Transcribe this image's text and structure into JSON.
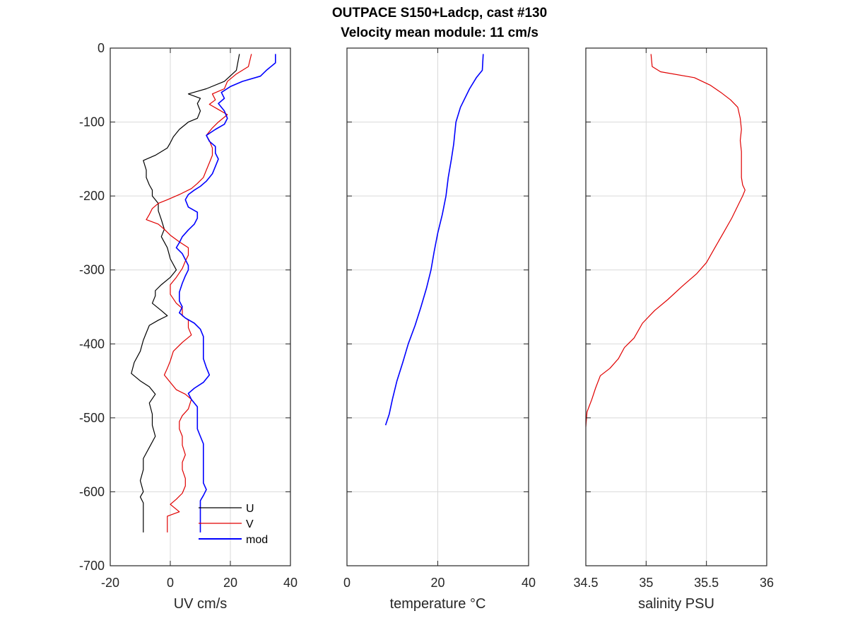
{
  "title": {
    "line1": "OUTPACE S150+Ladcp, cast #130",
    "line2": "Velocity mean module:  11 cm/s"
  },
  "colors": {
    "u": "#000000",
    "v": "#e00000",
    "mod": "#0000ff",
    "temperature": "#0000ff",
    "salinity": "#e00000",
    "grid": "#d9d9d9",
    "axis": "#262626"
  },
  "chart_data": [
    {
      "type": "line",
      "xlabel": "UV cm/s",
      "ylabel": "",
      "xlim": [
        -20,
        40
      ],
      "ylim": [
        -700,
        0
      ],
      "xticks": [
        -20,
        0,
        20,
        40
      ],
      "yticks": [
        0,
        -100,
        -200,
        -300,
        -400,
        -500,
        -600,
        -700
      ],
      "grid": true,
      "legend_position": "bottom-right",
      "series": [
        {
          "name": "U",
          "color": "#000000",
          "points": [
            [
              23,
              -8
            ],
            [
              22,
              -30
            ],
            [
              18,
              -45
            ],
            [
              12,
              -55
            ],
            [
              6,
              -62
            ],
            [
              10,
              -68
            ],
            [
              9,
              -75
            ],
            [
              10,
              -85
            ],
            [
              9,
              -95
            ],
            [
              6,
              -100
            ],
            [
              3,
              -110
            ],
            [
              1,
              -120
            ],
            [
              0,
              -128
            ],
            [
              -1,
              -135
            ],
            [
              -5,
              -145
            ],
            [
              -9,
              -152
            ],
            [
              -8,
              -165
            ],
            [
              -8,
              -175
            ],
            [
              -7,
              -185
            ],
            [
              -6,
              -192
            ],
            [
              -6,
              -200
            ],
            [
              -4,
              -210
            ],
            [
              -4,
              -220
            ],
            [
              -3,
              -232
            ],
            [
              -2,
              -245
            ],
            [
              -3,
              -255
            ],
            [
              -1,
              -270
            ],
            [
              0,
              -285
            ],
            [
              2,
              -300
            ],
            [
              0,
              -310
            ],
            [
              -3,
              -320
            ],
            [
              -5,
              -328
            ],
            [
              -5,
              -335
            ],
            [
              -6,
              -345
            ],
            [
              -3,
              -355
            ],
            [
              -1,
              -362
            ],
            [
              -4,
              -368
            ],
            [
              -7,
              -375
            ],
            [
              -8,
              -385
            ],
            [
              -9,
              -395
            ],
            [
              -10,
              -410
            ],
            [
              -12,
              -425
            ],
            [
              -13,
              -440
            ],
            [
              -10,
              -450
            ],
            [
              -7,
              -458
            ],
            [
              -5,
              -468
            ],
            [
              -7,
              -480
            ],
            [
              -6,
              -495
            ],
            [
              -6,
              -510
            ],
            [
              -5,
              -525
            ],
            [
              -7,
              -540
            ],
            [
              -9,
              -555
            ],
            [
              -9,
              -570
            ],
            [
              -10,
              -585
            ],
            [
              -9,
              -600
            ],
            [
              -10,
              -607
            ],
            [
              -9,
              -615
            ],
            [
              -9,
              -625
            ],
            [
              -9,
              -655
            ]
          ]
        },
        {
          "name": "V",
          "color": "#e00000",
          "points": [
            [
              27,
              -8
            ],
            [
              26,
              -25
            ],
            [
              22,
              -35
            ],
            [
              19,
              -45
            ],
            [
              18,
              -55
            ],
            [
              14,
              -62
            ],
            [
              15,
              -70
            ],
            [
              13,
              -76
            ],
            [
              16,
              -83
            ],
            [
              19,
              -90
            ],
            [
              16,
              -100
            ],
            [
              14,
              -108
            ],
            [
              12,
              -118
            ],
            [
              13,
              -125
            ],
            [
              14,
              -135
            ],
            [
              14,
              -145
            ],
            [
              13,
              -155
            ],
            [
              12,
              -165
            ],
            [
              11,
              -175
            ],
            [
              9,
              -183
            ],
            [
              7,
              -190
            ],
            [
              3,
              -198
            ],
            [
              -1,
              -205
            ],
            [
              -4,
              -210
            ],
            [
              -6,
              -217
            ],
            [
              -7,
              -225
            ],
            [
              -8,
              -232
            ],
            [
              -4,
              -238
            ],
            [
              -2,
              -245
            ],
            [
              0,
              -253
            ],
            [
              3,
              -262
            ],
            [
              6,
              -270
            ],
            [
              6,
              -280
            ],
            [
              5,
              -288
            ],
            [
              4,
              -298
            ],
            [
              2,
              -310
            ],
            [
              0,
              -320
            ],
            [
              0,
              -333
            ],
            [
              2,
              -345
            ],
            [
              4,
              -352
            ],
            [
              4,
              -362
            ],
            [
              6,
              -368
            ],
            [
              6,
              -378
            ],
            [
              7,
              -388
            ],
            [
              4,
              -398
            ],
            [
              1,
              -410
            ],
            [
              0,
              -423
            ],
            [
              -1,
              -433
            ],
            [
              -2,
              -442
            ],
            [
              0,
              -452
            ],
            [
              2,
              -462
            ],
            [
              5,
              -468
            ],
            [
              7,
              -475
            ],
            [
              6,
              -488
            ],
            [
              4,
              -497
            ],
            [
              3,
              -505
            ],
            [
              3,
              -515
            ],
            [
              4,
              -525
            ],
            [
              4,
              -537
            ],
            [
              5,
              -550
            ],
            [
              4,
              -560
            ],
            [
              4,
              -570
            ],
            [
              5,
              -582
            ],
            [
              5,
              -592
            ],
            [
              4,
              -602
            ],
            [
              2,
              -610
            ],
            [
              0,
              -617
            ],
            [
              3,
              -627
            ],
            [
              -1,
              -633
            ],
            [
              -1,
              -655
            ]
          ]
        },
        {
          "name": "mod",
          "color": "#0000ff",
          "points": [
            [
              35,
              -8
            ],
            [
              35,
              -20
            ],
            [
              32,
              -30
            ],
            [
              30,
              -38
            ],
            [
              24,
              -45
            ],
            [
              20,
              -52
            ],
            [
              17,
              -60
            ],
            [
              18,
              -68
            ],
            [
              16,
              -75
            ],
            [
              18,
              -85
            ],
            [
              19,
              -95
            ],
            [
              18,
              -103
            ],
            [
              15,
              -110
            ],
            [
              12,
              -118
            ],
            [
              13,
              -126
            ],
            [
              15,
              -133
            ],
            [
              15,
              -142
            ],
            [
              16,
              -150
            ],
            [
              15,
              -160
            ],
            [
              14,
              -170
            ],
            [
              12,
              -180
            ],
            [
              10,
              -187
            ],
            [
              8,
              -192
            ],
            [
              6,
              -198
            ],
            [
              5,
              -205
            ],
            [
              6,
              -215
            ],
            [
              9,
              -222
            ],
            [
              9,
              -230
            ],
            [
              8,
              -238
            ],
            [
              6,
              -246
            ],
            [
              4,
              -255
            ],
            [
              3,
              -263
            ],
            [
              2,
              -270
            ],
            [
              4,
              -278
            ],
            [
              5,
              -286
            ],
            [
              6,
              -294
            ],
            [
              6,
              -300
            ],
            [
              5,
              -308
            ],
            [
              4,
              -318
            ],
            [
              3,
              -330
            ],
            [
              3,
              -342
            ],
            [
              4,
              -350
            ],
            [
              3,
              -358
            ],
            [
              5,
              -365
            ],
            [
              8,
              -372
            ],
            [
              10,
              -380
            ],
            [
              11,
              -390
            ],
            [
              11,
              -400
            ],
            [
              11,
              -410
            ],
            [
              11,
              -420
            ],
            [
              12,
              -432
            ],
            [
              13,
              -442
            ],
            [
              11,
              -452
            ],
            [
              8,
              -460
            ],
            [
              6,
              -467
            ],
            [
              7,
              -475
            ],
            [
              9,
              -485
            ],
            [
              9,
              -495
            ],
            [
              9,
              -505
            ],
            [
              9,
              -515
            ],
            [
              10,
              -525
            ],
            [
              11,
              -535
            ],
            [
              11,
              -548
            ],
            [
              11,
              -560
            ],
            [
              11,
              -575
            ],
            [
              11,
              -588
            ],
            [
              12,
              -597
            ],
            [
              11,
              -605
            ],
            [
              10,
              -612
            ],
            [
              10,
              -620
            ],
            [
              10,
              -630
            ],
            [
              10,
              -655
            ]
          ]
        }
      ]
    },
    {
      "type": "line",
      "xlabel": "temperature °C",
      "ylabel": "",
      "xlim": [
        0,
        40
      ],
      "ylim": [
        -700,
        0
      ],
      "xticks": [
        0,
        20,
        40
      ],
      "yticks": [
        0,
        -100,
        -200,
        -300,
        -400,
        -500,
        -600,
        -700
      ],
      "grid": true,
      "series": [
        {
          "name": "",
          "color": "#0000ff",
          "points": [
            [
              30,
              -8
            ],
            [
              29.8,
              -30
            ],
            [
              28.5,
              -40
            ],
            [
              27,
              -55
            ],
            [
              25,
              -80
            ],
            [
              24,
              -100
            ],
            [
              23.5,
              -130
            ],
            [
              23,
              -150
            ],
            [
              22.3,
              -175
            ],
            [
              21.8,
              -200
            ],
            [
              21,
              -225
            ],
            [
              20,
              -250
            ],
            [
              19.2,
              -275
            ],
            [
              18.5,
              -300
            ],
            [
              17.5,
              -325
            ],
            [
              16.3,
              -350
            ],
            [
              15,
              -375
            ],
            [
              13.5,
              -400
            ],
            [
              12.3,
              -425
            ],
            [
              11,
              -450
            ],
            [
              10,
              -475
            ],
            [
              9.3,
              -495
            ],
            [
              8.5,
              -510
            ]
          ]
        }
      ]
    },
    {
      "type": "line",
      "xlabel": "salinity PSU",
      "ylabel": "",
      "xlim": [
        34.5,
        36
      ],
      "xtick_labels": [
        "34.5",
        "35",
        "35.5",
        "36"
      ],
      "ylim": [
        -700,
        0
      ],
      "xticks": [
        34.5,
        35,
        35.5,
        36
      ],
      "yticks": [
        0,
        -100,
        -200,
        -300,
        -400,
        -500,
        -600,
        -700
      ],
      "grid": true,
      "series": [
        {
          "name": "",
          "color": "#e00000",
          "points": [
            [
              35.04,
              -8
            ],
            [
              35.05,
              -25
            ],
            [
              35.12,
              -32
            ],
            [
              35.4,
              -40
            ],
            [
              35.53,
              -50
            ],
            [
              35.62,
              -60
            ],
            [
              35.7,
              -70
            ],
            [
              35.76,
              -80
            ],
            [
              35.78,
              -95
            ],
            [
              35.79,
              -110
            ],
            [
              35.78,
              -125
            ],
            [
              35.79,
              -140
            ],
            [
              35.79,
              -160
            ],
            [
              35.79,
              -175
            ],
            [
              35.8,
              -185
            ],
            [
              35.82,
              -192
            ],
            [
              35.8,
              -200
            ],
            [
              35.77,
              -210
            ],
            [
              35.71,
              -230
            ],
            [
              35.64,
              -250
            ],
            [
              35.57,
              -270
            ],
            [
              35.5,
              -290
            ],
            [
              35.42,
              -305
            ],
            [
              35.3,
              -322
            ],
            [
              35.18,
              -340
            ],
            [
              35.07,
              -355
            ],
            [
              34.97,
              -372
            ],
            [
              34.9,
              -392
            ],
            [
              34.82,
              -405
            ],
            [
              34.77,
              -420
            ],
            [
              34.7,
              -433
            ],
            [
              34.62,
              -443
            ],
            [
              34.58,
              -460
            ],
            [
              34.55,
              -475
            ],
            [
              34.51,
              -492
            ],
            [
              34.5,
              -512
            ]
          ]
        }
      ]
    }
  ]
}
